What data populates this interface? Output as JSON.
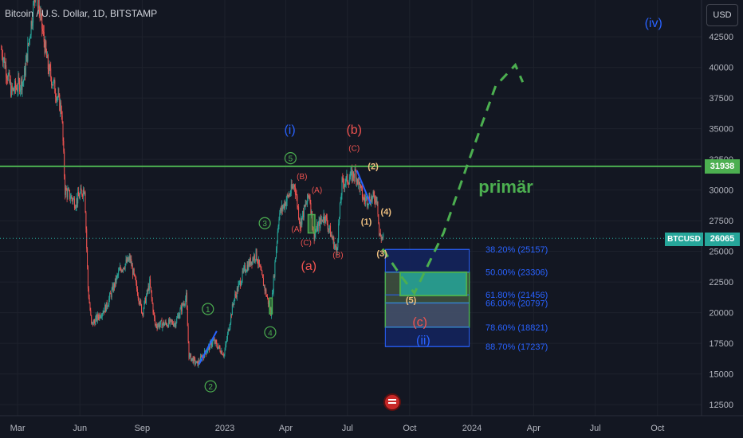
{
  "header": {
    "title": "Bitcoin / U.S. Dollar, 1D, BITSTAMP",
    "currency": "USD"
  },
  "price_tags": {
    "hline_value": "31938",
    "symbol": "BTCUSD",
    "last_price": "26065"
  },
  "colors": {
    "bg": "#131722",
    "up": "#26a69a",
    "down": "#ef5350",
    "hline": "#4caf50",
    "fib_box": "#1e3a8a",
    "fib_text": "#2962ff",
    "path": "#4caf50",
    "wave_blue": "#2962ff",
    "wave_red": "#ef5350",
    "wave_green": "#4caf50",
    "wave_orange": "#f0c080"
  },
  "chart_data": {
    "type": "candlestick",
    "y_ticks": [
      42500,
      40000,
      37500,
      35000,
      32500,
      30000,
      27500,
      25000,
      22500,
      20000,
      17500,
      15000,
      12500
    ],
    "y_tick_labels": [
      "42500",
      "40000",
      "37500",
      "35000",
      "32500",
      "30000",
      "27500",
      "25000",
      "22500",
      "20000",
      "17500",
      "15000",
      "12500"
    ],
    "ylim": [
      11600,
      45500
    ],
    "x_ticks": [
      {
        "label": "Mar",
        "date": "2022-03-01"
      },
      {
        "label": "Jun",
        "date": "2022-06-01"
      },
      {
        "label": "Sep",
        "date": "2022-09-01"
      },
      {
        "label": "2023",
        "date": "2023-01-01"
      },
      {
        "label": "Apr",
        "date": "2023-04-01"
      },
      {
        "label": "Jul",
        "date": "2023-07-01"
      },
      {
        "label": "Oct",
        "date": "2023-10-01"
      },
      {
        "label": "2024",
        "date": "2024-01-01"
      },
      {
        "label": "Apr",
        "date": "2024-04-01"
      },
      {
        "label": "Jul",
        "date": "2024-07-01"
      },
      {
        "label": "Oct",
        "date": "2024-10-01"
      }
    ],
    "xlim": [
      "2022-02-03",
      "2024-12-05"
    ],
    "price_path": [
      {
        "date": "2022-02-05",
        "price": 41500
      },
      {
        "date": "2022-02-20",
        "price": 38000
      },
      {
        "date": "2022-03-10",
        "price": 39000
      },
      {
        "date": "2022-03-28",
        "price": 46500
      },
      {
        "date": "2022-04-15",
        "price": 40000
      },
      {
        "date": "2022-05-05",
        "price": 36500
      },
      {
        "date": "2022-05-10",
        "price": 30000
      },
      {
        "date": "2022-05-25",
        "price": 29000
      },
      {
        "date": "2022-06-08",
        "price": 30200
      },
      {
        "date": "2022-06-13",
        "price": 22000
      },
      {
        "date": "2022-06-18",
        "price": 19000
      },
      {
        "date": "2022-07-10",
        "price": 20500
      },
      {
        "date": "2022-07-30",
        "price": 23500
      },
      {
        "date": "2022-08-14",
        "price": 24400
      },
      {
        "date": "2022-09-01",
        "price": 20000
      },
      {
        "date": "2022-09-12",
        "price": 22400
      },
      {
        "date": "2022-09-20",
        "price": 19000
      },
      {
        "date": "2022-10-20",
        "price": 19200
      },
      {
        "date": "2022-11-05",
        "price": 21300
      },
      {
        "date": "2022-11-09",
        "price": 16500
      },
      {
        "date": "2022-11-21",
        "price": 15800
      },
      {
        "date": "2022-12-15",
        "price": 17700
      },
      {
        "date": "2022-12-31",
        "price": 16600
      },
      {
        "date": "2023-01-14",
        "price": 21000
      },
      {
        "date": "2023-01-30",
        "price": 23500
      },
      {
        "date": "2023-02-16",
        "price": 24800
      },
      {
        "date": "2023-03-10",
        "price": 20000
      },
      {
        "date": "2023-03-22",
        "price": 28000
      },
      {
        "date": "2023-04-14",
        "price": 30500
      },
      {
        "date": "2023-04-22",
        "price": 27300
      },
      {
        "date": "2023-05-06",
        "price": 29700
      },
      {
        "date": "2023-05-12",
        "price": 26300
      },
      {
        "date": "2023-05-28",
        "price": 28000
      },
      {
        "date": "2023-06-15",
        "price": 25000
      },
      {
        "date": "2023-06-23",
        "price": 30500
      },
      {
        "date": "2023-07-13",
        "price": 31400
      },
      {
        "date": "2023-07-25",
        "price": 29200
      },
      {
        "date": "2023-08-14",
        "price": 29400
      },
      {
        "date": "2023-08-17",
        "price": 26300
      },
      {
        "date": "2023-08-24",
        "price": 26065
      }
    ],
    "horizontal_line": {
      "price": 31938,
      "label": "31938"
    },
    "last_price": 26065,
    "fib_levels": [
      {
        "label": "38.20% (25157)",
        "price": 25157
      },
      {
        "label": "50.00% (23306)",
        "price": 23306
      },
      {
        "label": "61.80% (21456)",
        "price": 21456
      },
      {
        "label": "66.00% (20797)",
        "price": 20797
      },
      {
        "label": "78.60% (18821)",
        "price": 18821
      },
      {
        "label": "88.70% (17237)",
        "price": 17237
      }
    ],
    "fib_box": {
      "from": "2023-08-26",
      "to": "2023-12-28"
    },
    "target_zone": {
      "from": "2023-09-17",
      "to": "2023-12-24",
      "top": 23300,
      "bottom": 21400
    },
    "projection_path": [
      {
        "date": "2023-08-22",
        "price": 25200
      },
      {
        "date": "2023-09-18",
        "price": 23000
      },
      {
        "date": "2023-10-08",
        "price": 21600
      },
      {
        "date": "2023-11-20",
        "price": 26500
      },
      {
        "date": "2023-12-28",
        "price": 32500
      },
      {
        "date": "2024-02-05",
        "price": 38500
      },
      {
        "date": "2024-03-05",
        "price": 40200
      },
      {
        "date": "2024-03-16",
        "price": 38800
      }
    ],
    "blue_channels": [
      {
        "points": [
          {
            "date": "2022-11-24",
            "price": 15800
          },
          {
            "date": "2022-12-20",
            "price": 18500
          }
        ]
      },
      {
        "points": [
          {
            "date": "2023-07-15",
            "price": 31600
          },
          {
            "date": "2023-08-04",
            "price": 28900
          }
        ]
      }
    ],
    "marker_rects": [
      {
        "from": "2023-03-08",
        "to": "2023-03-12",
        "top": 21200,
        "bottom": 19900
      },
      {
        "from": "2023-05-04",
        "to": "2023-05-14",
        "top": 28000,
        "bottom": 26500
      }
    ],
    "wave_labels": [
      {
        "text": "(iv)",
        "date": "2024-09-25",
        "price": 43300,
        "color": "blue",
        "size": 16
      },
      {
        "text": "(i)",
        "date": "2023-04-07",
        "price": 34600,
        "color": "blue",
        "size": 16
      },
      {
        "text": "(b)",
        "date": "2023-07-11",
        "price": 34600,
        "color": "red",
        "size": 16
      },
      {
        "text": "(C)",
        "date": "2023-07-11",
        "price": 33200,
        "color": "red",
        "size": 10
      },
      {
        "text": "(B)",
        "date": "2023-04-25",
        "price": 30900,
        "color": "red",
        "size": 10
      },
      {
        "text": "(A)",
        "date": "2023-05-17",
        "price": 29800,
        "color": "red",
        "size": 10
      },
      {
        "text": "(A)",
        "date": "2023-04-17",
        "price": 26600,
        "color": "red",
        "size": 10
      },
      {
        "text": "(C)",
        "date": "2023-05-01",
        "price": 25500,
        "color": "red",
        "size": 10
      },
      {
        "text": "(B)",
        "date": "2023-06-17",
        "price": 24500,
        "color": "red",
        "size": 10
      },
      {
        "text": "(a)",
        "date": "2023-05-05",
        "price": 23500,
        "color": "red",
        "size": 16
      },
      {
        "text": "(c)",
        "date": "2023-10-16",
        "price": 18900,
        "color": "red",
        "size": 16
      },
      {
        "text": "(ii)",
        "date": "2023-10-21",
        "price": 17400,
        "color": "blue",
        "size": 16
      },
      {
        "text": "(2)",
        "date": "2023-08-08",
        "price": 31700,
        "color": "orange",
        "size": 11
      },
      {
        "text": "(4)",
        "date": "2023-08-27",
        "price": 28000,
        "color": "orange",
        "size": 11
      },
      {
        "text": "(1)",
        "date": "2023-07-29",
        "price": 27200,
        "color": "orange",
        "size": 11
      },
      {
        "text": "(3)",
        "date": "2023-08-21",
        "price": 24600,
        "color": "orange",
        "size": 11
      },
      {
        "text": "(5)",
        "date": "2023-10-03",
        "price": 20800,
        "color": "orange",
        "size": 11
      },
      {
        "text": "primär",
        "date": "2024-02-20",
        "price": 29800,
        "color": "green",
        "size": 22
      }
    ],
    "circled_labels": [
      {
        "text": "5",
        "date": "2023-04-08",
        "price": 32600
      },
      {
        "text": "3",
        "date": "2023-03-01",
        "price": 27300
      },
      {
        "text": "4",
        "date": "2023-03-09",
        "price": 18400
      },
      {
        "text": "1",
        "date": "2022-12-07",
        "price": 20300
      },
      {
        "text": "2",
        "date": "2022-12-11",
        "price": 14000
      }
    ]
  }
}
